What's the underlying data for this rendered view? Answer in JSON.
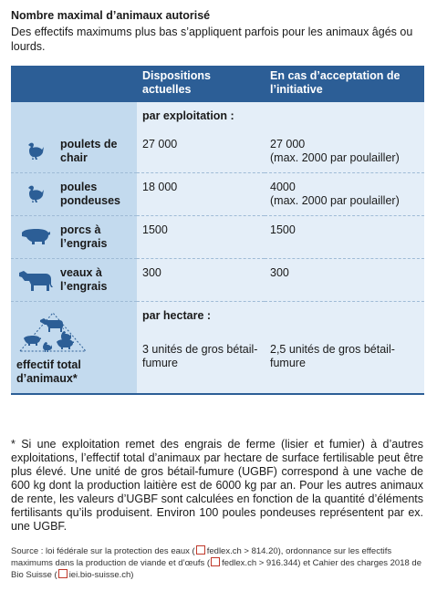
{
  "header": {
    "title": "Nombre maximal d’animaux autorisé",
    "subtitle": "Des effectifs maximums plus bas s’appliquent parfois pour les animaux âgés ou lourds."
  },
  "table": {
    "columns": [
      "Dispositions actuelles",
      "En cas d’acceptation de l’initiative"
    ],
    "groups": [
      "par exploitation :",
      "par hectare :"
    ],
    "rows": [
      {
        "label": "poulets de chair",
        "current": "27 000",
        "proposed": "27 000",
        "proposed_note": "(max. 2000 par poulailler)"
      },
      {
        "label": "poules pondeuses",
        "current": "18 000",
        "proposed": "4000",
        "proposed_note": "(max. 2000 par poulailler)"
      },
      {
        "label": "porcs à l’engrais",
        "current": "1500",
        "proposed": "1500"
      },
      {
        "label": "veaux à l’engrais",
        "current": "300",
        "proposed": "300"
      },
      {
        "label": "effectif total d’animaux*",
        "current": "3 unités de gros bétail-fumure",
        "proposed": "2,5 unités de gros bétail-fumure"
      }
    ]
  },
  "footnote": "* Si une exploitation remet des engrais de ferme (lisier et fumier) à d’autres exploitations, l’effectif total d’animaux par hectare de surface fertilisable peut être plus élevé. Une unité de gros bétail-fumure (UGBF) correspond à une vache de 600 kg dont la production laitière est de 6000 kg par an. Pour les autres animaux de rente, les valeurs d’UGBF sont calculées en fonction de la quantité d’éléments fertilisants qu’ils produisent. Environ 100 poules pondeuses représentent par ex. une UGBF.",
  "source": [
    "Source : loi fédérale sur la protection des eaux (",
    "fedlex.ch > 814.20), ordonnance sur les effectifs maximums dans la production de viande et d’œufs (",
    "fedlex.ch > 916.344) et Cahier des charges 2018 de Bio Suisse (",
    "iei.bio-suisse.ch)"
  ]
}
